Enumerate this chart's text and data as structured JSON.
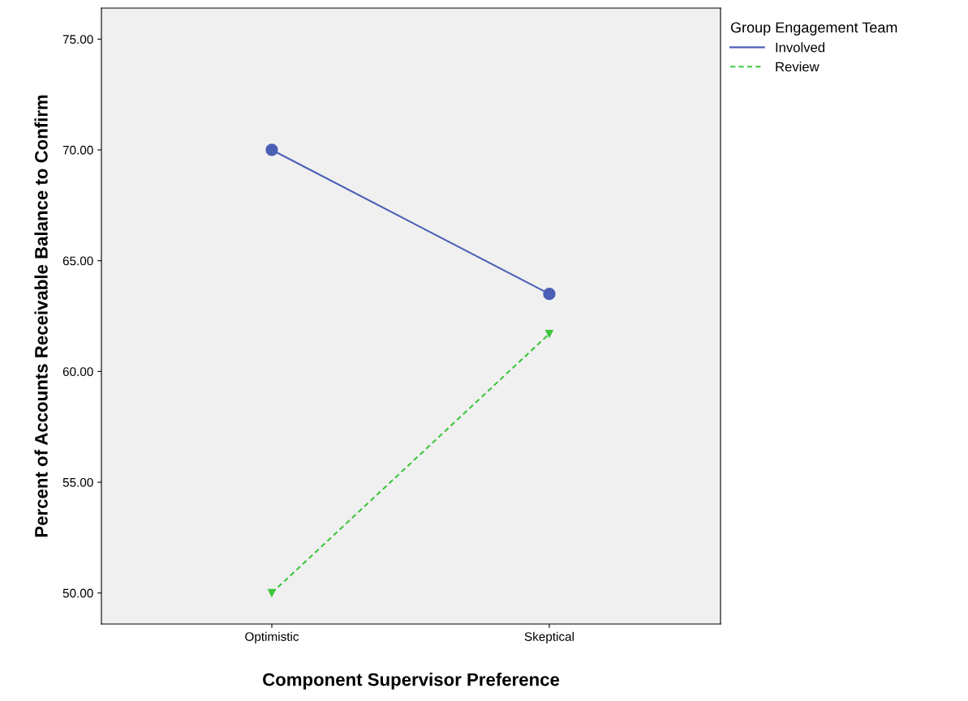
{
  "chart_data": {
    "type": "line",
    "xlabel": "Component Supervisor Preference",
    "ylabel": "Percent of Accounts Receivable Balance to Confirm",
    "legend_title": "Group Engagement Team",
    "legend": "top right",
    "grid": false,
    "categories": [
      "Optimistic",
      "Skeptical"
    ],
    "series": [
      {
        "name": "Involved",
        "color": "#4a5fb5",
        "values": [
          70.0,
          63.5
        ],
        "marker": "circle",
        "line_style": "solid"
      },
      {
        "name": "Review",
        "color": "#3cc63c",
        "values": [
          50.0,
          61.7
        ],
        "marker": "triangle",
        "line_style": "dashed"
      }
    ],
    "ylim": [
      48.6,
      76.4
    ],
    "yticks": [
      {
        "value": 50,
        "label": "50.00"
      },
      {
        "value": 55,
        "label": "55.00"
      },
      {
        "value": 60,
        "label": "60.00"
      },
      {
        "value": 65,
        "label": "65.00"
      },
      {
        "value": 70,
        "label": "70.00"
      },
      {
        "value": 75,
        "label": "75.00"
      }
    ]
  }
}
